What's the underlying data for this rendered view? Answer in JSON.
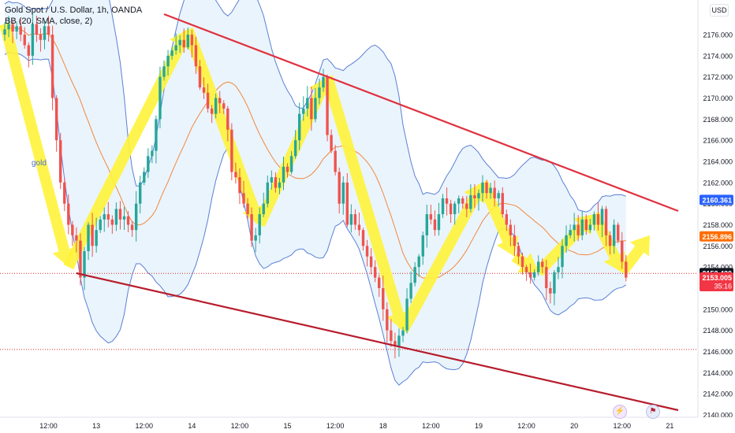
{
  "header": {
    "symbol_line": "Gold Spot / U.S. Dollar, 1h, OANDA",
    "indicator_line": "BB (20, SMA, close, 2)"
  },
  "currency": "USD",
  "annotation_label": "gold",
  "events": {
    "economic_icon": "lightning-icon",
    "flag_icon": "us-flag-icon"
  },
  "colors": {
    "up": "#26a69a",
    "down": "#ef5350",
    "bb_band": "#5b7fd6",
    "bb_fill": "#e3f0fb",
    "bb_basis": "#f0883e",
    "resistance": "#e0313f",
    "support": "#b71c2c",
    "arrow": "#fff33a",
    "last_price_bg": "#f23645",
    "bb_upper_tag": "#2962ff",
    "bb_basis_tag": "#ff6d00",
    "level_line": "#d32f2f"
  },
  "chart_data": {
    "type": "candlestick",
    "title": "Gold Spot / U.S. Dollar, 1h, OANDA",
    "indicator": "BB (20, SMA, close, 2)",
    "ylim": [
      2139.5,
      2178.5
    ],
    "y_ticks": [
      2140,
      2142,
      2144,
      2146,
      2148,
      2150,
      2152,
      2154,
      2156,
      2158,
      2160,
      2162,
      2164,
      2166,
      2168,
      2170,
      2172,
      2174,
      2176
    ],
    "x_ticks": [
      {
        "label": "12:00",
        "idx": 11
      },
      {
        "label": "13",
        "idx": 23
      },
      {
        "label": "12:00",
        "idx": 35
      },
      {
        "label": "14",
        "idx": 47
      },
      {
        "label": "12:00",
        "idx": 59
      },
      {
        "label": "15",
        "idx": 71
      },
      {
        "label": "12:00",
        "idx": 83
      },
      {
        "label": "18",
        "idx": 95
      },
      {
        "label": "12:00",
        "idx": 107
      },
      {
        "label": "19",
        "idx": 119
      },
      {
        "label": "12:00",
        "idx": 131
      },
      {
        "label": "20",
        "idx": 143
      },
      {
        "label": "12:00",
        "idx": 155
      },
      {
        "label": "21",
        "idx": 167
      }
    ],
    "closes": [
      2176.5,
      2177.0,
      2176.3,
      2176.8,
      2176.0,
      2175.0,
      2174.0,
      2177.0,
      2176.0,
      2175.5,
      2176.8,
      2176.0,
      2170.0,
      2166.0,
      2162.0,
      2160.0,
      2158.0,
      2157.0,
      2156.5,
      2153.0,
      2155.5,
      2158.0,
      2156.0,
      2157.5,
      2158.5,
      2159.0,
      2158.5,
      2158.0,
      2159.5,
      2158.5,
      2158.8,
      2158.0,
      2157.5,
      2160.0,
      2162.0,
      2163.0,
      2164.5,
      2165.0,
      2168.0,
      2172.0,
      2173.0,
      2174.0,
      2174.5,
      2175.0,
      2175.5,
      2174.8,
      2176.0,
      2175.0,
      2173.0,
      2171.0,
      2170.5,
      2169.0,
      2168.5,
      2170.0,
      2169.5,
      2169.0,
      2167.0,
      2163.0,
      2162.5,
      2161.0,
      2160.0,
      2159.0,
      2156.5,
      2157.0,
      2159.0,
      2160.0,
      2162.0,
      2162.5,
      2161.5,
      2162.0,
      2163.5,
      2163.0,
      2164.5,
      2166.0,
      2168.5,
      2169.0,
      2170.0,
      2168.0,
      2170.0,
      2171.0,
      2172.0,
      2166.5,
      2165.0,
      2163.0,
      2160.0,
      2162.0,
      2158.0,
      2159.0,
      2158.0,
      2157.5,
      2156.0,
      2155.0,
      2154.0,
      2153.0,
      2152.0,
      2150.0,
      2148.0,
      2147.0,
      2146.5,
      2147.5,
      2148.0,
      2151.0,
      2152.5,
      2154.0,
      2155.0,
      2157.0,
      2159.0,
      2158.5,
      2157.5,
      2159.0,
      2160.5,
      2160.0,
      2159.0,
      2160.0,
      2160.5,
      2160.0,
      2159.5,
      2160.8,
      2160.5,
      2161.0,
      2162.0,
      2161.0,
      2161.5,
      2160.5,
      2161.0,
      2159.0,
      2158.0,
      2157.0,
      2156.0,
      2155.0,
      2154.0,
      2153.5,
      2153.0,
      2153.5,
      2154.5,
      2154.0,
      2152.0,
      2151.5,
      2153.5,
      2154.0,
      2156.0,
      2157.0,
      2157.5,
      2158.0,
      2157.0,
      2158.5,
      2157.5,
      2158.0,
      2159.0,
      2158.0,
      2159.5,
      2157.0,
      2156.0,
      2158.0,
      2156.5,
      2154.5,
      2153.0
    ]
  }
}
